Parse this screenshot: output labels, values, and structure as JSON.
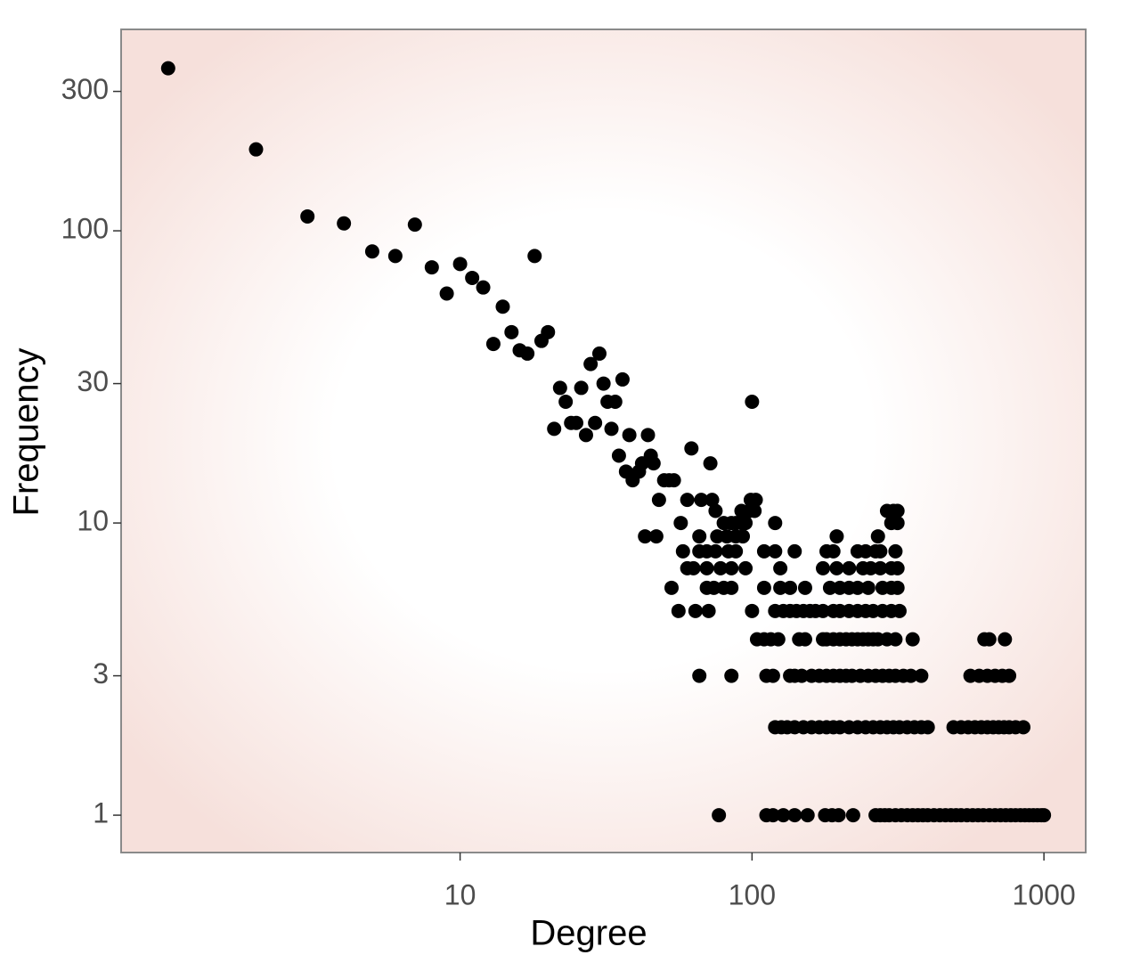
{
  "chart_data": {
    "type": "scatter",
    "x_label": "Degree",
    "y_label": "Frequency",
    "x_scale": "log",
    "y_scale": "log",
    "grid": false,
    "color": "#000000",
    "xlim": [
      0.69,
      1390
    ],
    "ylim": [
      0.745,
      489
    ],
    "xticks": [
      10,
      100,
      1000
    ],
    "yticks": [
      1,
      3,
      10,
      30,
      100,
      300
    ],
    "x": [
      1,
      2,
      3,
      4,
      5,
      6,
      7,
      8,
      9,
      10,
      11,
      12,
      13,
      14,
      15,
      16,
      17,
      18,
      19,
      20,
      21,
      22,
      23,
      24,
      25,
      26,
      27,
      28,
      29,
      30,
      31,
      32,
      33,
      34,
      35,
      36,
      37,
      38,
      39,
      41,
      42,
      44,
      45,
      46,
      48,
      50,
      52,
      54,
      62,
      72,
      100,
      60,
      67,
      73,
      99,
      103,
      75,
      92,
      98,
      102,
      290,
      305,
      315,
      57,
      80,
      85,
      88,
      92,
      95,
      120,
      300,
      315,
      43,
      47,
      66,
      76,
      82,
      88,
      93,
      195,
      270,
      58,
      66,
      70,
      75,
      83,
      88,
      110,
      120,
      140,
      180,
      190,
      230,
      245,
      265,
      275,
      310,
      60,
      63,
      70,
      78,
      85,
      95,
      125,
      175,
      195,
      215,
      240,
      255,
      275,
      300,
      315,
      53,
      70,
      74,
      80,
      85,
      110,
      125,
      135,
      152,
      185,
      200,
      215,
      230,
      250,
      280,
      300,
      315,
      56,
      64,
      71,
      100,
      120,
      128,
      135,
      142,
      150,
      158,
      165,
      175,
      190,
      200,
      215,
      230,
      245,
      260,
      280,
      300,
      320,
      104,
      110,
      116,
      123,
      145,
      152,
      175,
      180,
      190,
      200,
      210,
      220,
      230,
      240,
      250,
      260,
      270,
      290,
      310,
      355,
      625,
      650,
      735,
      66,
      85,
      112,
      118,
      135,
      140,
      148,
      160,
      170,
      180,
      190,
      200,
      210,
      220,
      235,
      250,
      265,
      280,
      295,
      310,
      330,
      350,
      380,
      560,
      600,
      640,
      680,
      720,
      760,
      120,
      126,
      132,
      140,
      150,
      160,
      170,
      180,
      190,
      200,
      215,
      230,
      245,
      260,
      275,
      290,
      305,
      320,
      340,
      360,
      380,
      400,
      490,
      520,
      550,
      580,
      610,
      640,
      670,
      700,
      730,
      760,
      800,
      850,
      77,
      112,
      118,
      128,
      140,
      155,
      178,
      188,
      198,
      222,
      265,
      275,
      285,
      295,
      310,
      325,
      340,
      355,
      370,
      385,
      400,
      420,
      440,
      460,
      480,
      500,
      520,
      545,
      570,
      595,
      620,
      650,
      680,
      710,
      740,
      770,
      800,
      830,
      860,
      890,
      920,
      950,
      980,
      1000
    ],
    "values": [
      360,
      190,
      112,
      106,
      85,
      82,
      105,
      75,
      61,
      77,
      69,
      64,
      41,
      55,
      45,
      39,
      38,
      82,
      42,
      45,
      21,
      29,
      26,
      22,
      22,
      29,
      20,
      35,
      22,
      38,
      30,
      26,
      21,
      26,
      17,
      31,
      15,
      20,
      14,
      15,
      16,
      20,
      17,
      16,
      12,
      14,
      14,
      14,
      18,
      16,
      26,
      12,
      12,
      12,
      12,
      12,
      11,
      11,
      11,
      11,
      11,
      11,
      11,
      10,
      10,
      10,
      10,
      10,
      10,
      10,
      10,
      10,
      9,
      9,
      9,
      9,
      9,
      9,
      9,
      9,
      9,
      8,
      8,
      8,
      8,
      8,
      8,
      8,
      8,
      8,
      8,
      8,
      8,
      8,
      8,
      8,
      8,
      7,
      7,
      7,
      7,
      7,
      7,
      7,
      7,
      7,
      7,
      7,
      7,
      7,
      7,
      7,
      6,
      6,
      6,
      6,
      6,
      6,
      6,
      6,
      6,
      6,
      6,
      6,
      6,
      6,
      6,
      6,
      6,
      5,
      5,
      5,
      5,
      5,
      5,
      5,
      5,
      5,
      5,
      5,
      5,
      5,
      5,
      5,
      5,
      5,
      5,
      5,
      5,
      5,
      4,
      4,
      4,
      4,
      4,
      4,
      4,
      4,
      4,
      4,
      4,
      4,
      4,
      4,
      4,
      4,
      4,
      4,
      4,
      4,
      4,
      4,
      4,
      3,
      3,
      3,
      3,
      3,
      3,
      3,
      3,
      3,
      3,
      3,
      3,
      3,
      3,
      3,
      3,
      3,
      3,
      3,
      3,
      3,
      3,
      3,
      3,
      3,
      3,
      3,
      3,
      3,
      2,
      2,
      2,
      2,
      2,
      2,
      2,
      2,
      2,
      2,
      2,
      2,
      2,
      2,
      2,
      2,
      2,
      2,
      2,
      2,
      2,
      2,
      2,
      2,
      2,
      2,
      2,
      2,
      2,
      2,
      2,
      2,
      2,
      2,
      1,
      1,
      1,
      1,
      1,
      1,
      1,
      1,
      1,
      1,
      1,
      1,
      1,
      1,
      1,
      1,
      1,
      1,
      1,
      1,
      1,
      1,
      1,
      1,
      1,
      1,
      1,
      1,
      1,
      1,
      1,
      1,
      1,
      1,
      1,
      1,
      1,
      1,
      1,
      1,
      1,
      1,
      1,
      1
    ]
  }
}
